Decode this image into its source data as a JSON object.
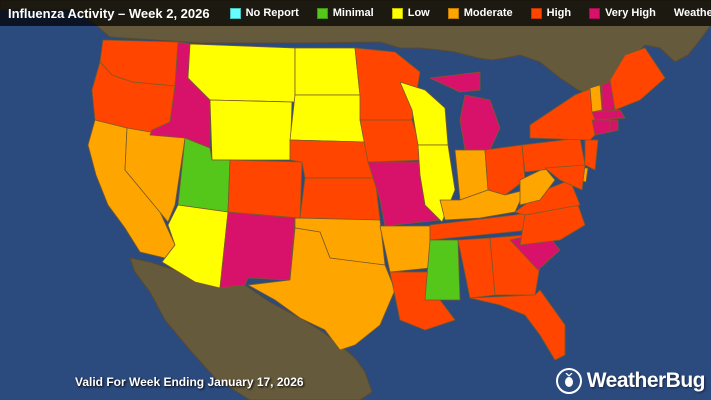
{
  "header": {
    "title": "Influenza Activity – Week 2, 2026",
    "brand": "WeatherBug.com"
  },
  "legend": [
    {
      "label": "No Report",
      "color": "#66ffff"
    },
    {
      "label": "Minimal",
      "color": "#55c61a"
    },
    {
      "label": "Low",
      "color": "#ffff00"
    },
    {
      "label": "Moderate",
      "color": "#ffa500"
    },
    {
      "label": "High",
      "color": "#ff4500"
    },
    {
      "label": "Very High",
      "color": "#d8126b"
    }
  ],
  "footer": {
    "valid_text": "Valid For Week Ending January 17, 2026",
    "logo_text": "WeatherBug"
  },
  "map_colors": {
    "ocean": "#2b4a7e",
    "land": "#665a3c",
    "border": "#5a4a30"
  },
  "states": {
    "WA": "High",
    "OR": "High",
    "CA": "Moderate",
    "NV": "Moderate",
    "ID": "Very High",
    "MT": "Low",
    "WY": "Low",
    "UT": "Minimal",
    "AZ": "Low",
    "CO": "High",
    "NM": "Very High",
    "ND": "Low",
    "SD": "Low",
    "NE": "High",
    "KS": "High",
    "OK": "Moderate",
    "TX": "Moderate",
    "MN": "High",
    "IA": "High",
    "MO": "Very High",
    "AR": "Moderate",
    "LA": "High",
    "WI": "Low",
    "IL": "Low",
    "MI": "Very High",
    "IN": "Moderate",
    "OH": "High",
    "KY": "Moderate",
    "TN": "High",
    "MS": "Minimal",
    "AL": "High",
    "GA": "High",
    "FL": "High",
    "SC": "Very High",
    "NC": "High",
    "VA": "High",
    "WV": "Moderate",
    "PA": "High",
    "NY": "High",
    "VT": "Moderate",
    "NH": "Very High",
    "ME": "High",
    "MA": "Very High",
    "CT": "Very High",
    "RI": "Very High",
    "NJ": "High",
    "DE": "Moderate",
    "MD": "High"
  }
}
